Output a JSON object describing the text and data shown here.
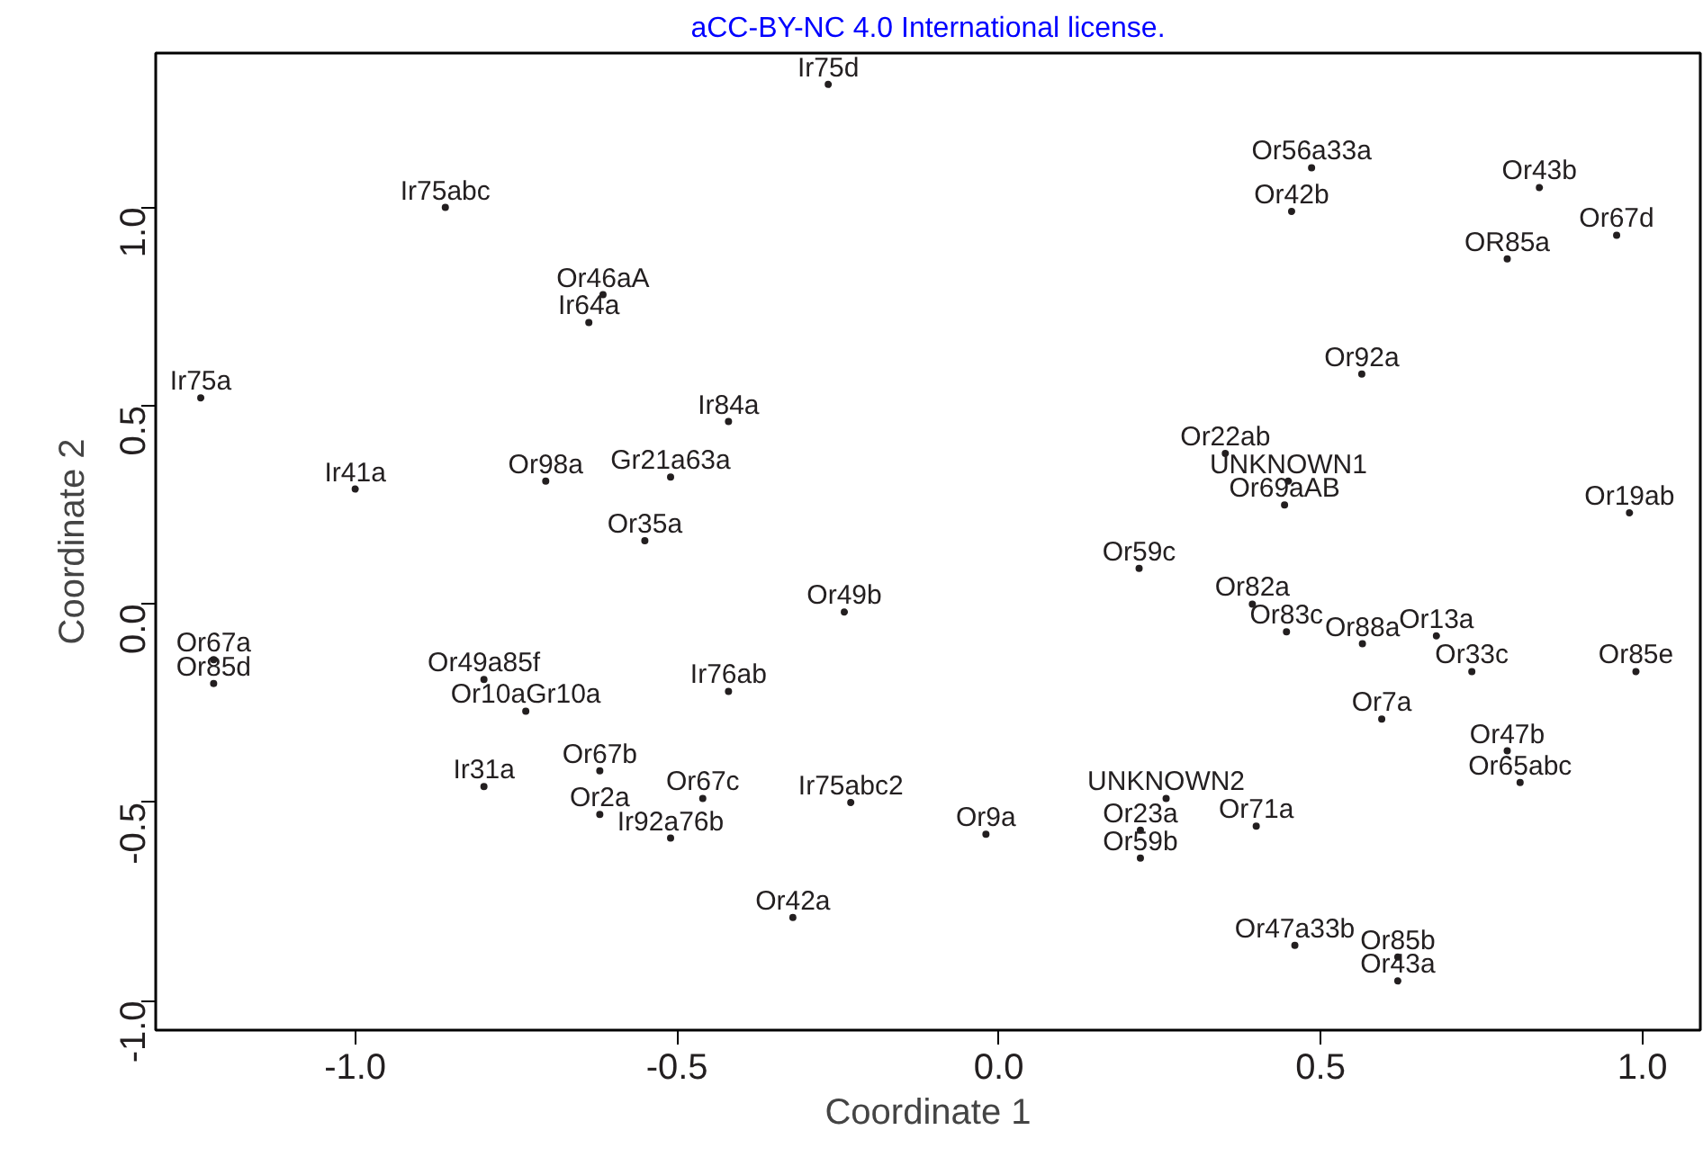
{
  "chart_data": {
    "type": "scatter",
    "xlabel": "Coordinate 1",
    "ylabel": "Coordinate 2",
    "annotations": [
      "aCC-BY-NC 4.0 International license."
    ],
    "x": [
      -0.265,
      -0.86,
      0.486,
      0.455,
      0.84,
      0.96,
      0.79,
      -0.615,
      -0.637,
      0.564,
      -1.24,
      -0.42,
      0.352,
      0.45,
      0.444,
      -0.704,
      -0.51,
      -1.0,
      0.98,
      -0.55,
      0.218,
      -0.24,
      0.394,
      0.447,
      0.68,
      0.565,
      -1.22,
      -1.22,
      -0.8,
      -0.735,
      -0.42,
      0.735,
      0.99,
      0.595,
      0.79,
      0.81,
      -0.62,
      -0.8,
      -0.46,
      -0.23,
      -0.62,
      -0.51,
      0.26,
      0.4,
      0.22,
      -0.02,
      0.22,
      -0.32,
      0.46,
      0.62,
      0.62
    ],
    "values": [
      1.31,
      1.0,
      1.1,
      0.99,
      1.05,
      0.93,
      0.87,
      0.78,
      0.71,
      0.58,
      0.52,
      0.46,
      0.38,
      0.31,
      0.25,
      0.31,
      0.32,
      0.29,
      0.23,
      0.16,
      0.09,
      -0.02,
      0.0,
      -0.07,
      -0.08,
      -0.1,
      -0.14,
      -0.2,
      -0.19,
      -0.27,
      -0.22,
      -0.17,
      -0.17,
      -0.29,
      -0.37,
      -0.45,
      -0.42,
      -0.46,
      -0.49,
      -0.5,
      -0.53,
      -0.59,
      -0.49,
      -0.56,
      -0.57,
      -0.58,
      -0.64,
      -0.79,
      -0.86,
      -0.89,
      -0.95
    ],
    "value_labels": [
      "Ir75d",
      "Ir75abc",
      "Or56a33a",
      "Or42b",
      "Or43b",
      "Or67d",
      "OR85a",
      "Or46aA",
      "Ir64a",
      "Or92a",
      "Ir75a",
      "Ir84a",
      "Or22ab",
      "UNKNOWN1",
      "Or69aAB",
      "Or98a",
      "Gr21a63a",
      "Ir41a",
      "Or19ab",
      "Or35a",
      "Or59c",
      "Or49b",
      "Or82a",
      "Or83c",
      "Or13a",
      "Or88a",
      "Or67a",
      "Or85d",
      "Or49a85f",
      "Or10aGr10a",
      "Ir76ab",
      "Or33c",
      "Or85e",
      "Or7a",
      "Or47b",
      "Or65abc",
      "Or67b",
      "Ir31a",
      "Or67c",
      "Ir75abc2",
      "Or2a",
      "Ir92a76b",
      "UNKNOWN2",
      "Or71a",
      "Or23a",
      "Or9a",
      "Or59b",
      "Or42a",
      "Or47a33b",
      "Or85b",
      "Or43a"
    ],
    "marker": "circle",
    "color": "#231f20",
    "xlim": [
      -1.31,
      1.09
    ],
    "ylim": [
      -1.074,
      1.389
    ],
    "xticks": [
      {
        "value": -1,
        "label": "-1.0"
      },
      {
        "value": -0.5,
        "label": "-0.5"
      },
      {
        "value": 0,
        "label": "0.0"
      },
      {
        "value": 0.5,
        "label": "0.5"
      },
      {
        "value": 1,
        "label": "1.0"
      }
    ],
    "yticks": [
      {
        "value": -1,
        "label": "-1.0"
      },
      {
        "value": -0.5,
        "label": "-0.5"
      },
      {
        "value": 0,
        "label": "0.0"
      },
      {
        "value": 0.5,
        "label": "0.5"
      },
      {
        "value": 1,
        "label": "1.0"
      }
    ],
    "grid": false
  }
}
